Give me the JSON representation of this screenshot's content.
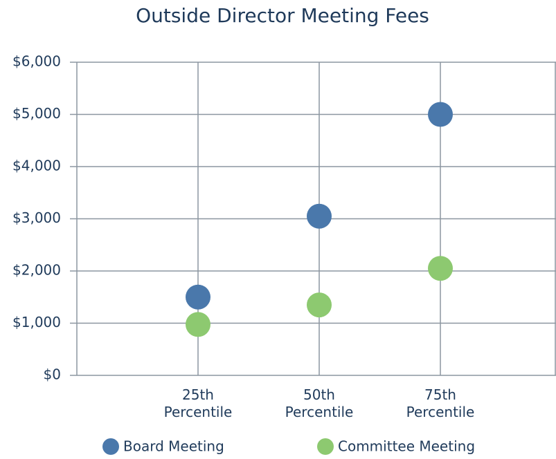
{
  "chart_data": {
    "type": "scatter",
    "title": "Outside Director Meeting Fees",
    "categories": [
      "25th Percentile",
      "50th Percentile",
      "75th Percentile"
    ],
    "series": [
      {
        "name": "Board Meeting",
        "color": "#4a78ab",
        "values": [
          1500,
          3050,
          5000
        ]
      },
      {
        "name": "Committee Meeting",
        "color": "#8dc970",
        "values": [
          975,
          1350,
          2050
        ]
      }
    ],
    "ylim": [
      0,
      6000
    ],
    "yticks": [
      {
        "value": 0,
        "label": "$0"
      },
      {
        "value": 1000,
        "label": "$1,000"
      },
      {
        "value": 2000,
        "label": "$2,000"
      },
      {
        "value": 3000,
        "label": "$3,000"
      },
      {
        "value": 4000,
        "label": "$4,000"
      },
      {
        "value": 5000,
        "label": "$5,000"
      },
      {
        "value": 6000,
        "label": "$6,000"
      }
    ],
    "grid": true
  }
}
